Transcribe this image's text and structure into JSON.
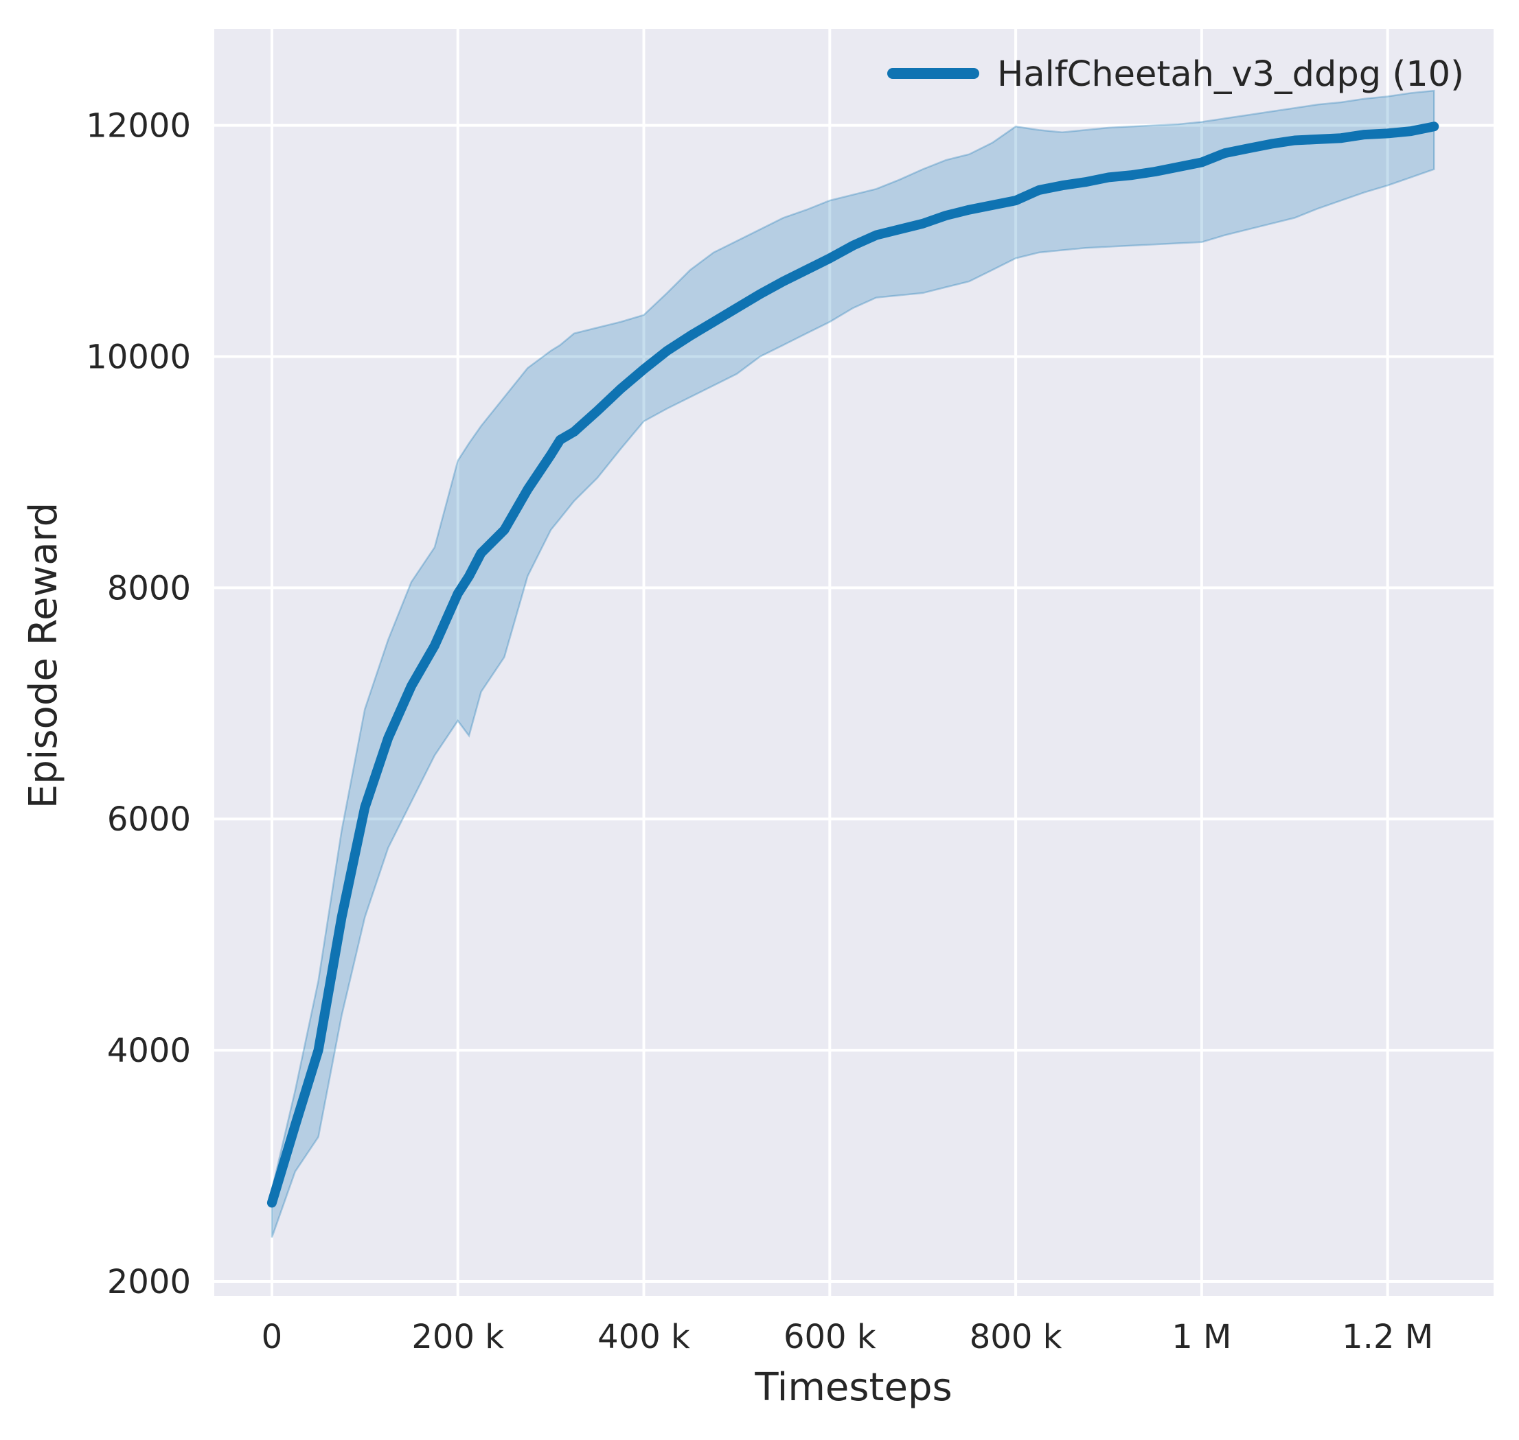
{
  "figure": {
    "background_color": "#ffffff",
    "plot_background_color": "#eaeaf2",
    "grid_color": "#ffffff",
    "text_color": "#262626"
  },
  "chart_data": {
    "type": "line",
    "title": "",
    "xlabel": "Timesteps",
    "ylabel": "Episode Reward",
    "grid": true,
    "legend_position": "upper right",
    "xlim": [
      -62000,
      1314000
    ],
    "ylim": [
      1875,
      12835
    ],
    "x_ticks": [
      {
        "value": 0,
        "label": "0"
      },
      {
        "value": 200000,
        "label": "200 k"
      },
      {
        "value": 400000,
        "label": "400 k"
      },
      {
        "value": 600000,
        "label": "600 k"
      },
      {
        "value": 800000,
        "label": "800 k"
      },
      {
        "value": 1000000,
        "label": "1 M"
      },
      {
        "value": 1200000,
        "label": "1.2 M"
      }
    ],
    "y_ticks": [
      {
        "value": 2000,
        "label": "2000"
      },
      {
        "value": 4000,
        "label": "4000"
      },
      {
        "value": 6000,
        "label": "6000"
      },
      {
        "value": 8000,
        "label": "8000"
      },
      {
        "value": 10000,
        "label": "10000"
      },
      {
        "value": 12000,
        "label": "12000"
      }
    ],
    "legend": [
      {
        "label": "HalfCheetah_v3_ddpg (10)",
        "color": "#0f73b2"
      }
    ],
    "series": [
      {
        "name": "HalfCheetah_v3_ddpg (10)",
        "color": "#0f73b2",
        "band_fill_alpha": 0.24,
        "x": [
          0,
          25000,
          50000,
          75000,
          100000,
          125000,
          150000,
          175000,
          200000,
          212000,
          225000,
          250000,
          275000,
          300000,
          310000,
          325000,
          350000,
          375000,
          400000,
          425000,
          450000,
          475000,
          500000,
          525000,
          550000,
          575000,
          600000,
          625000,
          650000,
          675000,
          700000,
          725000,
          750000,
          775000,
          800000,
          825000,
          850000,
          875000,
          900000,
          925000,
          950000,
          975000,
          1000000,
          1025000,
          1050000,
          1075000,
          1100000,
          1125000,
          1150000,
          1175000,
          1200000,
          1225000,
          1250000
        ],
        "mean": [
          2680,
          3350,
          4000,
          5150,
          6100,
          6700,
          7150,
          7500,
          7950,
          8100,
          8300,
          8500,
          8850,
          9150,
          9280,
          9350,
          9530,
          9720,
          9890,
          10050,
          10180,
          10300,
          10420,
          10540,
          10650,
          10750,
          10850,
          10960,
          11050,
          11100,
          11150,
          11220,
          11270,
          11310,
          11350,
          11440,
          11480,
          11510,
          11550,
          11570,
          11600,
          11640,
          11680,
          11760,
          11800,
          11840,
          11870,
          11880,
          11890,
          11920,
          11930,
          11950,
          11990
        ],
        "lower": [
          2380,
          2950,
          3250,
          4300,
          5150,
          5750,
          6150,
          6550,
          6850,
          6720,
          7100,
          7400,
          8100,
          8500,
          8600,
          8750,
          8950,
          9200,
          9440,
          9550,
          9650,
          9750,
          9850,
          10000,
          10100,
          10200,
          10300,
          10420,
          10510,
          10530,
          10550,
          10600,
          10650,
          10750,
          10850,
          10900,
          10920,
          10940,
          10950,
          10960,
          10970,
          10980,
          10990,
          11050,
          11100,
          11150,
          11200,
          11280,
          11350,
          11420,
          11480,
          11550,
          11620
        ],
        "upper": [
          2790,
          3650,
          4600,
          5900,
          6950,
          7550,
          8050,
          8350,
          9100,
          9250,
          9400,
          9650,
          9900,
          10050,
          10100,
          10200,
          10250,
          10300,
          10360,
          10550,
          10750,
          10900,
          11000,
          11100,
          11200,
          11270,
          11350,
          11400,
          11450,
          11530,
          11620,
          11700,
          11750,
          11850,
          11990,
          11960,
          11940,
          11960,
          11980,
          11990,
          12000,
          12010,
          12030,
          12060,
          12090,
          12120,
          12150,
          12180,
          12200,
          12230,
          12250,
          12280,
          12300
        ]
      }
    ]
  }
}
